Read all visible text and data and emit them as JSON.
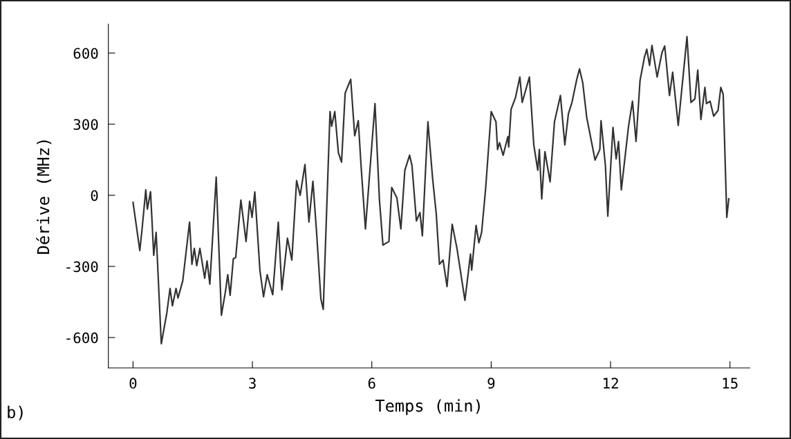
{
  "chart_data": {
    "type": "line",
    "xlabel": "Temps (min)",
    "ylabel": "Dérive (MHz)",
    "annotations": [
      "b)"
    ],
    "xlim": [
      -0.62,
      15.5
    ],
    "ylim": [
      -728,
      722
    ],
    "xticks": [
      0,
      3,
      6,
      9,
      12,
      15
    ],
    "yticks": [
      -600,
      -300,
      0,
      300,
      600
    ],
    "grid": false,
    "legend": false,
    "marker": "none",
    "line_style": "solid",
    "series": [
      {
        "color": "#333333",
        "x": [
          0.0,
          0.17,
          0.23,
          0.32,
          0.36,
          0.44,
          0.52,
          0.58,
          0.71,
          0.85,
          0.93,
          0.99,
          1.08,
          1.13,
          1.25,
          1.42,
          1.48,
          1.54,
          1.6,
          1.68,
          1.8,
          1.86,
          1.93,
          2.09,
          2.22,
          2.32,
          2.38,
          2.44,
          2.52,
          2.58,
          2.71,
          2.84,
          2.93,
          2.99,
          3.06,
          3.19,
          3.28,
          3.37,
          3.51,
          3.65,
          3.74,
          3.88,
          3.99,
          4.11,
          4.2,
          4.32,
          4.42,
          4.52,
          4.61,
          4.72,
          4.78,
          4.95,
          4.99,
          5.07,
          5.16,
          5.24,
          5.33,
          5.47,
          5.57,
          5.66,
          5.73,
          5.84,
          6.08,
          6.19,
          6.28,
          6.43,
          6.5,
          6.63,
          6.73,
          6.83,
          6.95,
          7.01,
          7.12,
          7.21,
          7.27,
          7.41,
          7.53,
          7.62,
          7.7,
          7.79,
          7.89,
          8.02,
          8.14,
          8.34,
          8.48,
          8.51,
          8.62,
          8.69,
          8.76,
          8.86,
          9.0,
          9.12,
          9.16,
          9.21,
          9.3,
          9.42,
          9.44,
          9.5,
          9.61,
          9.72,
          9.78,
          9.96,
          10.07,
          10.17,
          10.21,
          10.27,
          10.35,
          10.48,
          10.59,
          10.74,
          10.85,
          10.94,
          11.03,
          11.15,
          11.22,
          11.3,
          11.4,
          11.61,
          11.73,
          11.76,
          11.87,
          11.93,
          12.06,
          12.14,
          12.2,
          12.27,
          12.45,
          12.55,
          12.64,
          12.74,
          12.85,
          12.91,
          12.98,
          13.04,
          13.17,
          13.29,
          13.36,
          13.48,
          13.56,
          13.7,
          13.92,
          14.02,
          14.12,
          14.19,
          14.27,
          14.37,
          14.41,
          14.5,
          14.59,
          14.7,
          14.77,
          14.83,
          14.92,
          14.97
        ],
        "values": [
          -30,
          -233,
          -137,
          23,
          -58,
          15,
          -253,
          -156,
          -626,
          -495,
          -393,
          -466,
          -393,
          -433,
          -360,
          -113,
          -291,
          -224,
          -297,
          -224,
          -350,
          -277,
          -375,
          77,
          -506,
          -408,
          -335,
          -422,
          -268,
          -262,
          -20,
          -195,
          -25,
          -93,
          14,
          -320,
          -428,
          -335,
          -419,
          -113,
          -399,
          -181,
          -273,
          62,
          0,
          130,
          -113,
          59,
          -151,
          -437,
          -481,
          353,
          291,
          353,
          179,
          140,
          431,
          489,
          251,
          315,
          125,
          -142,
          387,
          -15,
          -210,
          -195,
          33,
          -11,
          -142,
          106,
          169,
          125,
          -108,
          -73,
          -171,
          310,
          67,
          -79,
          -291,
          -273,
          -385,
          -122,
          -224,
          -443,
          -248,
          -316,
          -127,
          -200,
          -156,
          28,
          353,
          310,
          193,
          222,
          169,
          248,
          204,
          363,
          412,
          499,
          392,
          499,
          213,
          106,
          193,
          -15,
          184,
          57,
          310,
          421,
          213,
          344,
          392,
          489,
          533,
          475,
          329,
          149,
          193,
          315,
          125,
          -88,
          286,
          154,
          227,
          23,
          290,
          397,
          227,
          484,
          582,
          616,
          548,
          632,
          499,
          601,
          630,
          421,
          519,
          295,
          669,
          392,
          407,
          528,
          320,
          455,
          387,
          397,
          334,
          358,
          455,
          426,
          -93,
          -15
        ]
      }
    ]
  }
}
